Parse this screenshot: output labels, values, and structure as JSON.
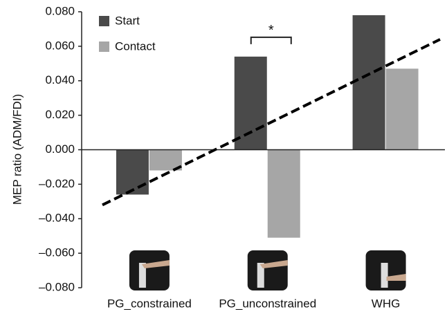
{
  "chart_data": {
    "type": "bar",
    "y_label": "MEP ratio (ADM/FDI)",
    "categories": [
      "PG_constrained",
      "PG_unconstrained",
      "WHG"
    ],
    "series": [
      {
        "name": "Start",
        "color": "#4a4a4a",
        "values": [
          -0.026,
          0.054,
          0.078
        ]
      },
      {
        "name": "Contact",
        "color": "#a6a6a6",
        "values": [
          -0.012,
          -0.051,
          0.047
        ]
      }
    ],
    "trend_line": {
      "values": [
        -0.032,
        0.064
      ]
    },
    "annotation": "*",
    "ylim": [
      -0.08,
      0.08
    ],
    "yticks": [
      {
        "value": -0.08,
        "label": "–0.080"
      },
      {
        "value": -0.06,
        "label": "–0.060"
      },
      {
        "value": -0.04,
        "label": "–0.040"
      },
      {
        "value": -0.02,
        "label": "–0.020"
      },
      {
        "value": 0,
        "label": "0.000"
      },
      {
        "value": 0.02,
        "label": "0.020"
      },
      {
        "value": 0.04,
        "label": "0.040"
      },
      {
        "value": 0.06,
        "label": "0.060"
      },
      {
        "value": 0.08,
        "label": "0.080"
      }
    ]
  }
}
